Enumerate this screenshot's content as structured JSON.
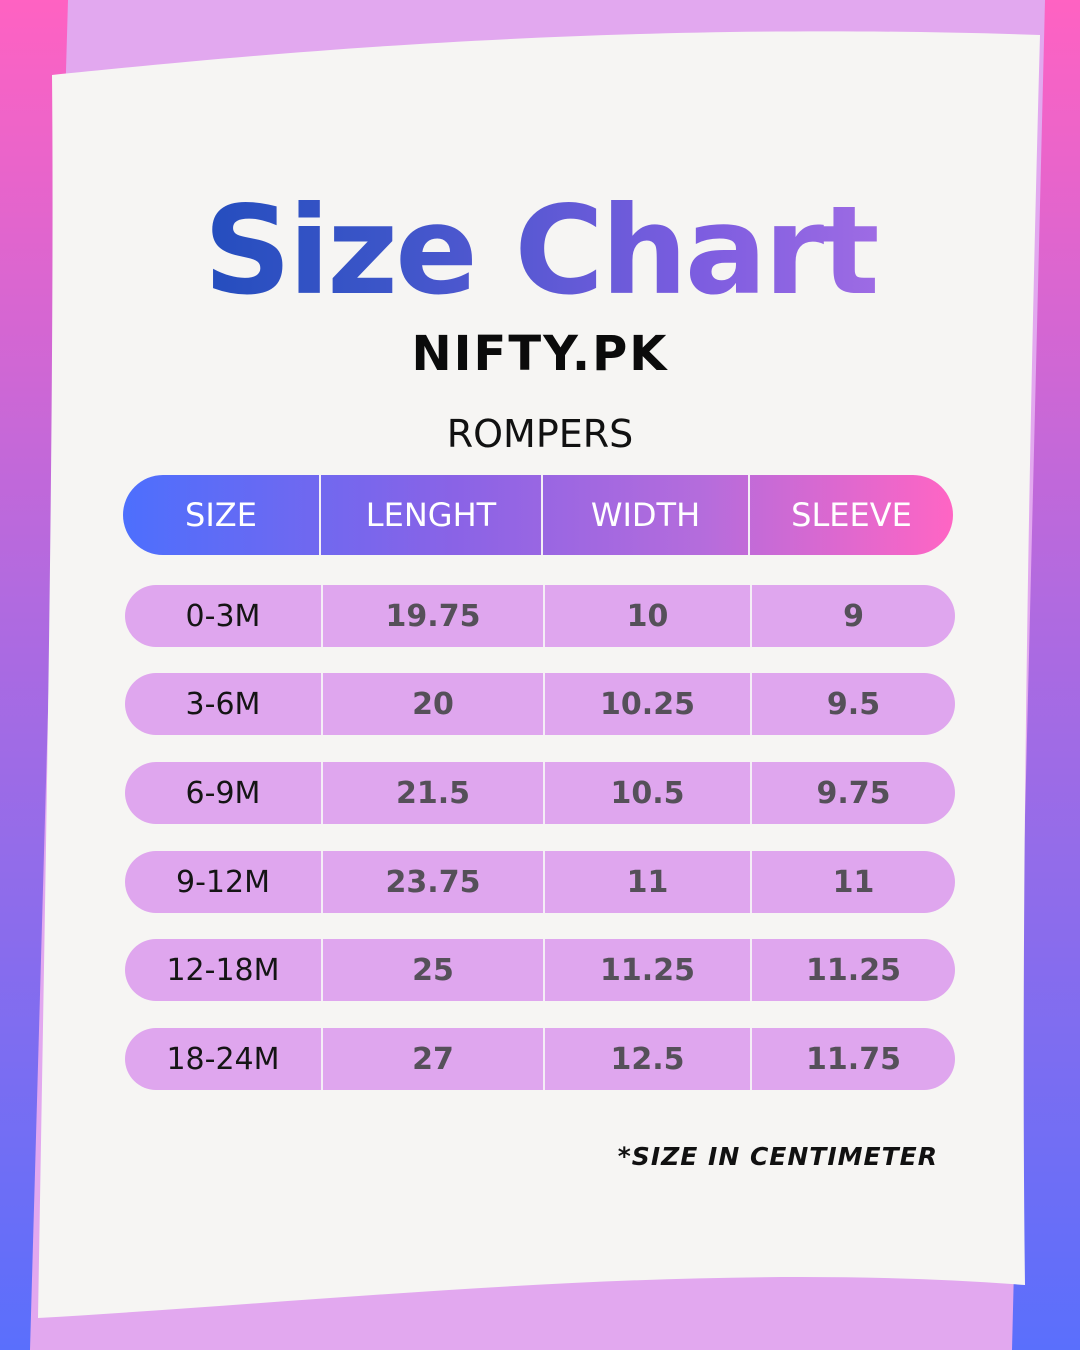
{
  "colors": {
    "accent_blue": "#0a44b2",
    "accent_purple": "#c47ce8",
    "row_fill": "#dfa6ee",
    "header_start": "#4d6ffd",
    "header_end": "#ff65c4"
  },
  "title": "Size Chart",
  "brand": "NIFTY.PK",
  "category": "ROMPERS",
  "table": {
    "headers": [
      "SIZE",
      "LENGHT",
      "WIDTH",
      "SLEEVE"
    ],
    "rows": [
      [
        "0-3M",
        "19.75",
        "10",
        "9"
      ],
      [
        "3-6M",
        "20",
        "10.25",
        "9.5"
      ],
      [
        "6-9M",
        "21.5",
        "10.5",
        "9.75"
      ],
      [
        "9-12M",
        "23.75",
        "11",
        "11"
      ],
      [
        "12-18M",
        "25",
        "11.25",
        "11.25"
      ],
      [
        "18-24M",
        "27",
        "12.5",
        "11.75"
      ]
    ]
  },
  "footnote": "*SIZE IN CENTIMETER"
}
